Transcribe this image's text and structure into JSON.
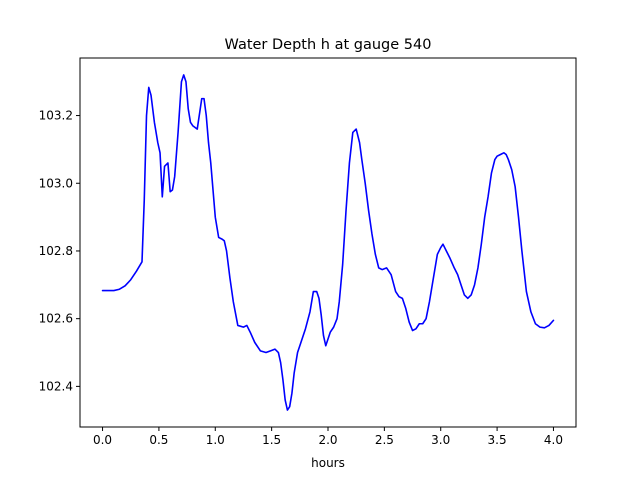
{
  "chart_data": {
    "type": "line",
    "title": "Water Depth h at gauge 540",
    "xlabel": "hours",
    "ylabel": "",
    "xlim": [
      -0.2,
      4.2
    ],
    "ylim": [
      102.28,
      103.37
    ],
    "grid": false,
    "line_color": "#0000ff",
    "x_ticks": [
      0.0,
      0.5,
      1.0,
      1.5,
      2.0,
      2.5,
      3.0,
      3.5,
      4.0
    ],
    "x_tick_labels": [
      "0.0",
      "0.5",
      "1.0",
      "1.5",
      "2.0",
      "2.5",
      "3.0",
      "3.5",
      "4.0"
    ],
    "y_ticks": [
      102.4,
      102.6,
      102.8,
      103.0,
      103.2
    ],
    "y_tick_labels": [
      "102.4",
      "102.6",
      "102.8",
      "103.0",
      "103.2"
    ],
    "series": [
      {
        "name": "",
        "x": [
          0.0,
          0.1,
          0.15,
          0.2,
          0.25,
          0.3,
          0.35,
          0.37,
          0.39,
          0.41,
          0.43,
          0.46,
          0.49,
          0.51,
          0.53,
          0.55,
          0.58,
          0.6,
          0.62,
          0.64,
          0.67,
          0.7,
          0.72,
          0.74,
          0.76,
          0.78,
          0.8,
          0.84,
          0.88,
          0.9,
          0.92,
          0.94,
          0.96,
          0.98,
          1.0,
          1.03,
          1.06,
          1.08,
          1.1,
          1.13,
          1.16,
          1.2,
          1.25,
          1.28,
          1.31,
          1.35,
          1.4,
          1.45,
          1.49,
          1.53,
          1.56,
          1.58,
          1.6,
          1.62,
          1.64,
          1.66,
          1.68,
          1.7,
          1.73,
          1.76,
          1.8,
          1.84,
          1.87,
          1.9,
          1.92,
          1.94,
          1.96,
          1.98,
          2.0,
          2.02,
          2.05,
          2.08,
          2.1,
          2.13,
          2.16,
          2.19,
          2.22,
          2.25,
          2.28,
          2.3,
          2.33,
          2.36,
          2.39,
          2.42,
          2.45,
          2.48,
          2.52,
          2.56,
          2.6,
          2.63,
          2.66,
          2.69,
          2.72,
          2.75,
          2.78,
          2.81,
          2.84,
          2.87,
          2.9,
          2.94,
          2.97,
          3.0,
          3.02,
          3.05,
          3.08,
          3.12,
          3.15,
          3.18,
          3.21,
          3.24,
          3.27,
          3.3,
          3.33,
          3.36,
          3.39,
          3.42,
          3.45,
          3.48,
          3.5,
          3.53,
          3.56,
          3.58,
          3.6,
          3.63,
          3.66,
          3.69,
          3.72,
          3.76,
          3.8,
          3.84,
          3.88,
          3.92,
          3.96,
          4.0
        ],
        "values": [
          102.683,
          102.683,
          102.687,
          102.697,
          102.715,
          102.74,
          102.768,
          102.95,
          103.2,
          103.283,
          103.26,
          103.18,
          103.12,
          103.09,
          102.96,
          103.05,
          103.06,
          102.975,
          102.98,
          103.02,
          103.15,
          103.3,
          103.32,
          103.3,
          103.22,
          103.18,
          103.17,
          103.16,
          103.25,
          103.25,
          103.2,
          103.12,
          103.06,
          102.98,
          102.9,
          102.84,
          102.835,
          102.83,
          102.8,
          102.72,
          102.65,
          102.58,
          102.575,
          102.58,
          102.56,
          102.53,
          102.505,
          102.5,
          102.505,
          102.51,
          102.5,
          102.47,
          102.42,
          102.36,
          102.33,
          102.34,
          102.38,
          102.44,
          102.5,
          102.53,
          102.57,
          102.62,
          102.68,
          102.68,
          102.66,
          102.61,
          102.55,
          102.52,
          102.54,
          102.56,
          102.575,
          102.6,
          102.65,
          102.76,
          102.92,
          103.06,
          103.15,
          103.16,
          103.12,
          103.07,
          103.0,
          102.92,
          102.85,
          102.79,
          102.75,
          102.745,
          102.75,
          102.73,
          102.68,
          102.665,
          102.66,
          102.63,
          102.59,
          102.565,
          102.57,
          102.585,
          102.585,
          102.6,
          102.65,
          102.73,
          102.79,
          102.81,
          102.82,
          102.8,
          102.78,
          102.75,
          102.73,
          102.7,
          102.67,
          102.66,
          102.67,
          102.7,
          102.75,
          102.82,
          102.9,
          102.96,
          103.03,
          103.07,
          103.08,
          103.085,
          103.09,
          103.085,
          103.07,
          103.04,
          102.99,
          102.9,
          102.8,
          102.68,
          102.62,
          102.585,
          102.575,
          102.573,
          102.58,
          102.595
        ]
      }
    ]
  }
}
